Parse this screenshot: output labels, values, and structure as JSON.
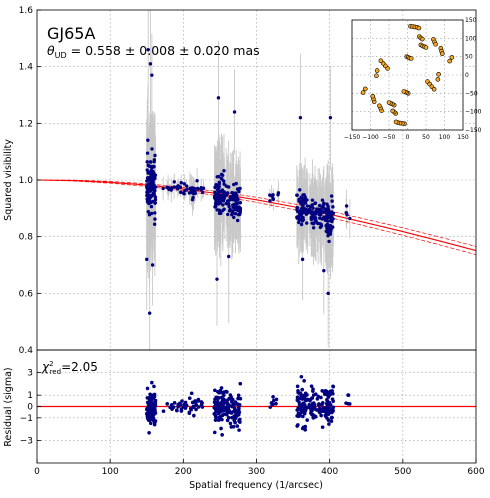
{
  "chart_data": [
    {
      "type": "scatter",
      "panel": "main",
      "title": "GJ65A",
      "annotation": {
        "prefix": "θ",
        "subscript": "UD",
        "text": " = 0.558 ± 0.008  ± 0.020 mas"
      },
      "xlabel": "",
      "ylabel": "Squared visibility",
      "xlim": [
        0,
        600
      ],
      "ylim": [
        0.4,
        1.6
      ],
      "xticks": [
        0,
        100,
        200,
        300,
        400,
        500,
        600
      ],
      "yticks": [
        "0.4",
        "0.6",
        "0.8",
        "1.0",
        "1.2",
        "1.4",
        "1.6"
      ],
      "grid": true,
      "colors": {
        "points": "#000080",
        "errorbars": "#c8c8c8",
        "model": "#ff0000"
      },
      "clusters": [
        {
          "x_range": [
            150,
            162
          ],
          "y_mean": 0.98,
          "y_spread": 0.11,
          "err": 0.17,
          "count": 110
        },
        {
          "x_range": [
            172,
            205
          ],
          "y_mean": 0.97,
          "y_spread": 0.02,
          "err": 0.03,
          "count": 24
        },
        {
          "x_range": [
            208,
            228
          ],
          "y_mean": 0.96,
          "y_spread": 0.03,
          "err": 0.04,
          "count": 22
        },
        {
          "x_range": [
            242,
            256
          ],
          "y_mean": 0.94,
          "y_spread": 0.07,
          "err": 0.13,
          "count": 80
        },
        {
          "x_range": [
            258,
            278
          ],
          "y_mean": 0.93,
          "y_spread": 0.06,
          "err": 0.11,
          "count": 70
        },
        {
          "x_range": [
            318,
            330
          ],
          "y_mean": 0.94,
          "y_spread": 0.02,
          "err": 0.03,
          "count": 8
        },
        {
          "x_range": [
            355,
            370
          ],
          "y_mean": 0.9,
          "y_spread": 0.06,
          "err": 0.1,
          "count": 60
        },
        {
          "x_range": [
            372,
            395
          ],
          "y_mean": 0.89,
          "y_spread": 0.06,
          "err": 0.1,
          "count": 60
        },
        {
          "x_range": [
            395,
            405
          ],
          "y_mean": 0.86,
          "y_spread": 0.07,
          "err": 0.12,
          "count": 50
        },
        {
          "x_range": [
            422,
            428
          ],
          "y_mean": 0.89,
          "y_spread": 0.03,
          "err": 0.06,
          "count": 5
        }
      ],
      "outliers": [
        {
          "x": 152,
          "y": 1.46
        },
        {
          "x": 155,
          "y": 1.41
        },
        {
          "x": 157,
          "y": 1.37
        },
        {
          "x": 150,
          "y": 0.72
        },
        {
          "x": 158,
          "y": 0.7
        },
        {
          "x": 154,
          "y": 0.53
        },
        {
          "x": 248,
          "y": 1.29
        },
        {
          "x": 270,
          "y": 1.24
        },
        {
          "x": 262,
          "y": 0.73
        },
        {
          "x": 246,
          "y": 0.65
        },
        {
          "x": 360,
          "y": 1.22
        },
        {
          "x": 363,
          "y": 0.72
        },
        {
          "x": 401,
          "y": 1.22
        },
        {
          "x": 398,
          "y": 0.6
        },
        {
          "x": 392,
          "y": 0.68
        }
      ],
      "model": {
        "type": "uniform-disk",
        "x": [
          0,
          50,
          100,
          150,
          200,
          250,
          300,
          350,
          400,
          450,
          500,
          550,
          600
        ],
        "y": [
          1.0,
          0.998,
          0.992,
          0.982,
          0.968,
          0.951,
          0.93,
          0.906,
          0.879,
          0.849,
          0.818,
          0.785,
          0.751
        ],
        "band": 0.0137
      }
    },
    {
      "type": "scatter",
      "panel": "inset-uv",
      "xlim": [
        -150,
        150
      ],
      "ylim": [
        -150,
        150
      ],
      "xticks": [
        "−150",
        "−100",
        "−50",
        "0",
        "50",
        "100",
        "150"
      ],
      "yticks": [
        "−150",
        "−100",
        "−50",
        "0",
        "50",
        "100",
        "150"
      ],
      "grid": true,
      "colors": {
        "fill": "#f5a623",
        "edge": "#000000"
      },
      "points": [
        [
          8,
          133
        ],
        [
          14,
          132
        ],
        [
          20,
          131
        ],
        [
          26,
          130
        ],
        [
          31,
          128
        ],
        [
          32,
          105
        ],
        [
          36,
          101
        ],
        [
          40,
          98
        ],
        [
          36,
          82
        ],
        [
          41,
          79
        ],
        [
          46,
          77
        ],
        [
          50,
          75
        ],
        [
          70,
          97
        ],
        [
          73,
          90
        ],
        [
          76,
          84
        ],
        [
          90,
          73
        ],
        [
          92,
          65
        ],
        [
          94,
          58
        ],
        [
          120,
          48
        ],
        [
          114,
          38
        ],
        [
          -54,
          18
        ],
        [
          -60,
          25
        ],
        [
          -66,
          32
        ],
        [
          -72,
          39
        ],
        [
          -82,
          12
        ],
        [
          -84,
          -2
        ],
        [
          54,
          -18
        ],
        [
          60,
          -25
        ],
        [
          66,
          -32
        ],
        [
          72,
          -39
        ],
        [
          82,
          -12
        ],
        [
          84,
          2
        ],
        [
          -8,
          -133
        ],
        [
          -14,
          -132
        ],
        [
          -20,
          -131
        ],
        [
          -26,
          -130
        ],
        [
          -31,
          -128
        ],
        [
          -32,
          -105
        ],
        [
          -36,
          -101
        ],
        [
          -40,
          -98
        ],
        [
          -36,
          -82
        ],
        [
          -41,
          -79
        ],
        [
          -46,
          -77
        ],
        [
          -50,
          -75
        ],
        [
          -70,
          -97
        ],
        [
          -73,
          -90
        ],
        [
          -76,
          -84
        ],
        [
          -90,
          -73
        ],
        [
          -92,
          -65
        ],
        [
          -94,
          -58
        ],
        [
          -120,
          -48
        ],
        [
          -114,
          -38
        ],
        [
          -2,
          50
        ],
        [
          2,
          48
        ],
        [
          6,
          46
        ],
        [
          10,
          45
        ],
        [
          2,
          -50
        ],
        [
          -2,
          -48
        ],
        [
          -6,
          -46
        ],
        [
          -10,
          -45
        ]
      ]
    },
    {
      "type": "scatter",
      "panel": "residuals",
      "annotation": {
        "prefix": "χ",
        "superscript": "2",
        "subscript": "red",
        "text": "=2.05"
      },
      "xlabel": "Spatial frequency (1/arcsec)",
      "ylabel": "Residual (sigma)",
      "xlim": [
        0,
        600
      ],
      "ylim": [
        -5,
        5
      ],
      "xticks": [
        0,
        100,
        200,
        300,
        400,
        500,
        600
      ],
      "yticks": [
        "−3",
        "−1",
        "0",
        "1",
        "3"
      ],
      "grid": true,
      "colors": {
        "points": "#000080",
        "zero_line": "#ff0000"
      },
      "clusters": [
        {
          "x_range": [
            150,
            162
          ],
          "y_mean": 0,
          "y_spread": 1.4,
          "count": 110
        },
        {
          "x_range": [
            172,
            205
          ],
          "y_mean": 0,
          "y_spread": 0.5,
          "count": 24
        },
        {
          "x_range": [
            208,
            228
          ],
          "y_mean": 0,
          "y_spread": 0.8,
          "count": 22
        },
        {
          "x_range": [
            242,
            256
          ],
          "y_mean": 0,
          "y_spread": 1.5,
          "count": 80
        },
        {
          "x_range": [
            258,
            278
          ],
          "y_mean": -0.2,
          "y_spread": 1.7,
          "count": 70
        },
        {
          "x_range": [
            318,
            330
          ],
          "y_mean": 0,
          "y_spread": 0.6,
          "count": 8
        },
        {
          "x_range": [
            355,
            370
          ],
          "y_mean": 0,
          "y_spread": 1.9,
          "count": 60
        },
        {
          "x_range": [
            372,
            395
          ],
          "y_mean": 0,
          "y_spread": 1.5,
          "count": 60
        },
        {
          "x_range": [
            395,
            405
          ],
          "y_mean": 0,
          "y_spread": 1.7,
          "count": 50
        },
        {
          "x_range": [
            422,
            428
          ],
          "y_mean": 0.5,
          "y_spread": 0.6,
          "count": 5
        }
      ]
    }
  ]
}
